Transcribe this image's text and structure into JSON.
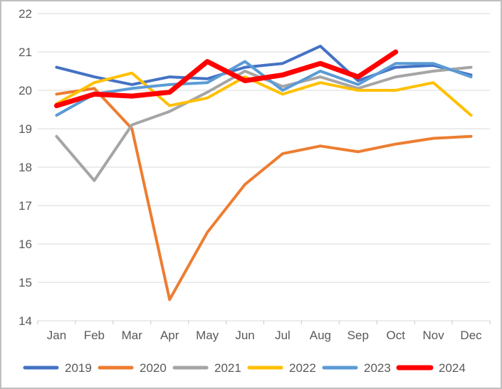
{
  "chart_data": {
    "type": "line",
    "title": "",
    "xlabel": "",
    "ylabel": "",
    "categories": [
      "Jan",
      "Feb",
      "Mar",
      "Apr",
      "May",
      "Jun",
      "Jul",
      "Aug",
      "Sep",
      "Oct",
      "Nov",
      "Dec"
    ],
    "ylim": [
      14,
      22
    ],
    "y_ticks": [
      14,
      15,
      16,
      17,
      18,
      19,
      20,
      21,
      22
    ],
    "grid": true,
    "legend_position": "bottom",
    "series": [
      {
        "name": "2019",
        "color": "#4472C4",
        "stroke_width": 4,
        "values": [
          20.6,
          20.35,
          20.15,
          20.35,
          20.3,
          20.6,
          20.7,
          21.15,
          20.25,
          20.6,
          20.65,
          20.4
        ]
      },
      {
        "name": "2020",
        "color": "#ED7D31",
        "stroke_width": 4,
        "values": [
          19.9,
          20.05,
          19.0,
          14.55,
          16.3,
          17.55,
          18.35,
          18.55,
          18.4,
          18.6,
          18.75,
          18.8
        ]
      },
      {
        "name": "2021",
        "color": "#A5A5A5",
        "stroke_width": 4,
        "values": [
          18.8,
          17.65,
          19.1,
          19.45,
          19.95,
          20.5,
          20.1,
          20.35,
          20.05,
          20.35,
          20.5,
          20.6
        ]
      },
      {
        "name": "2022",
        "color": "#FFC000",
        "stroke_width": 4,
        "values": [
          19.65,
          20.2,
          20.45,
          19.6,
          19.8,
          20.35,
          19.9,
          20.2,
          20.0,
          20.0,
          20.2,
          19.35
        ]
      },
      {
        "name": "2023",
        "color": "#5B9BD5",
        "stroke_width": 4,
        "values": [
          19.35,
          19.9,
          20.05,
          20.15,
          20.2,
          20.75,
          20.0,
          20.5,
          20.15,
          20.7,
          20.7,
          20.35
        ]
      },
      {
        "name": "2024",
        "color": "#FF0000",
        "stroke_width": 7,
        "values": [
          19.6,
          19.9,
          19.85,
          19.95,
          20.75,
          20.25,
          20.4,
          20.7,
          20.35,
          21.0
        ]
      }
    ]
  },
  "colors": {
    "background": "#FFFFFF",
    "gridline": "#D9D9D9",
    "axis_line": "#D9D9D9",
    "tick_mark": "#C6C6C6",
    "label_text": "#595959",
    "frame_border": "#BFBFBF"
  }
}
